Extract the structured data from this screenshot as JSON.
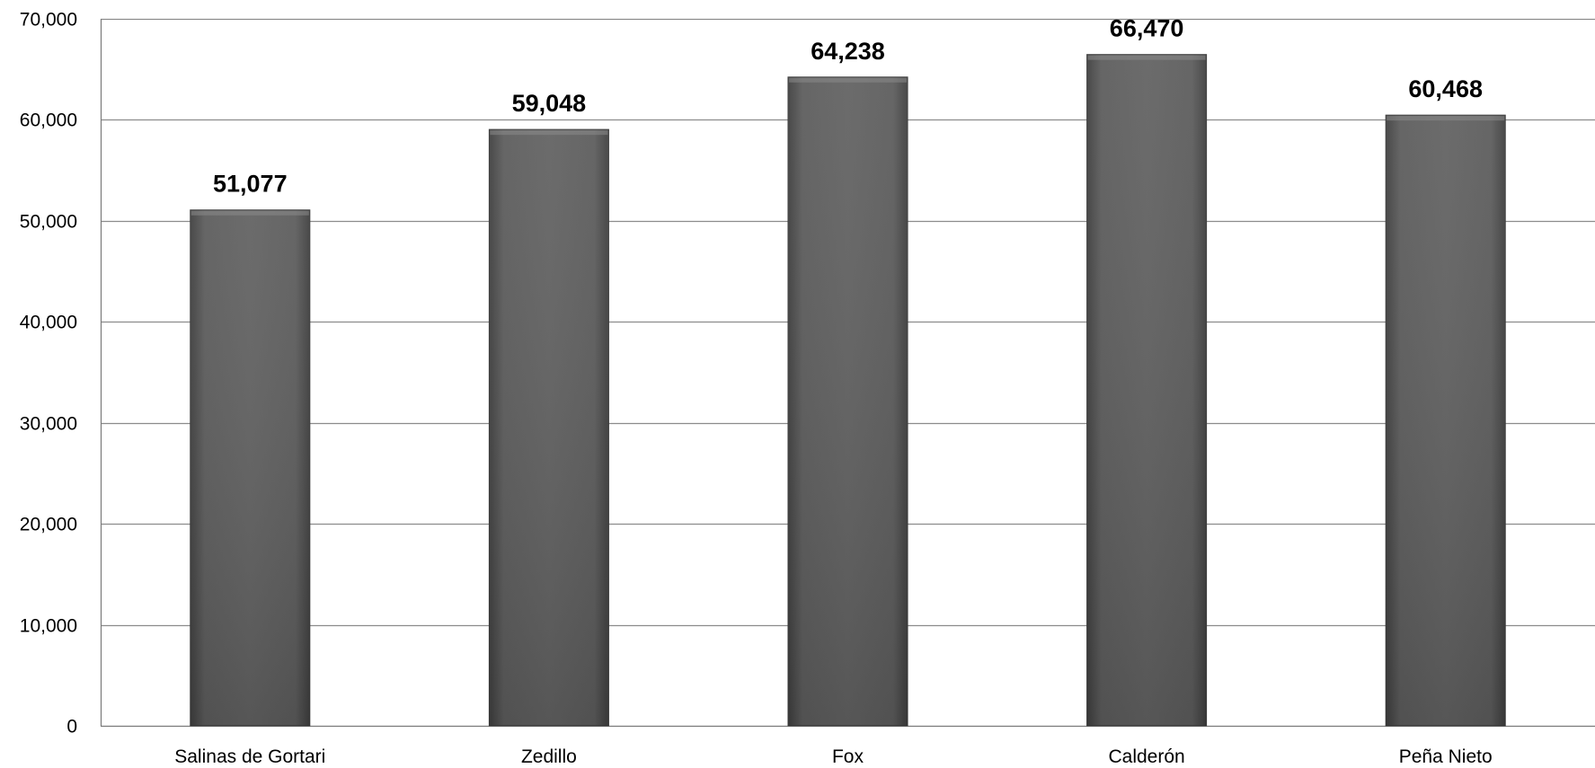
{
  "chart_data": {
    "type": "bar",
    "categories": [
      "Salinas de Gortari",
      "Zedillo",
      "Fox",
      "Calderón",
      "Peña Nieto"
    ],
    "values": [
      51077,
      59048,
      64238,
      66470,
      60468
    ],
    "data_labels": [
      "51,077",
      "59,048",
      "64,238",
      "66,470",
      "60,468"
    ],
    "ylim": [
      0,
      70000
    ],
    "yticks": [
      0,
      10000,
      20000,
      30000,
      40000,
      50000,
      60000,
      70000
    ],
    "ytick_labels": [
      "0",
      "10,000",
      "20,000",
      "30,000",
      "40,000",
      "50,000",
      "60,000",
      "70,000"
    ],
    "grid": true,
    "legend": "none",
    "bar_color": "#5a5a5a",
    "grid_color": "#8c8c8c"
  }
}
